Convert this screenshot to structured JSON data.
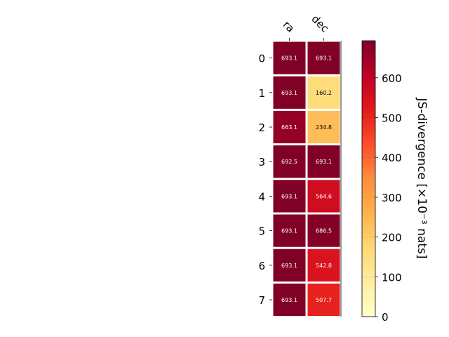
{
  "chart_data": {
    "type": "heatmap",
    "columns": [
      "ra",
      "dec"
    ],
    "rows": [
      "0",
      "1",
      "2",
      "3",
      "4",
      "5",
      "6",
      "7"
    ],
    "values": [
      [
        693.1,
        693.1
      ],
      [
        693.1,
        160.2
      ],
      [
        663.1,
        234.8
      ],
      [
        692.5,
        693.1
      ],
      [
        693.1,
        564.6
      ],
      [
        693.1,
        686.5
      ],
      [
        693.1,
        542.8
      ],
      [
        693.1,
        507.7
      ]
    ],
    "cell_labels": [
      [
        "693.1",
        "693.1"
      ],
      [
        "693.1",
        "160.2"
      ],
      [
        "663.1",
        "234.8"
      ],
      [
        "692.5",
        "693.1"
      ],
      [
        "693.1",
        "564.6"
      ],
      [
        "693.1",
        "686.5"
      ],
      [
        "693.1",
        "542.8"
      ],
      [
        "693.1",
        "507.7"
      ]
    ],
    "colorbar": {
      "label": "JS-divergence [×10⁻³ nats]",
      "range": [
        0,
        693.1
      ],
      "ticks": [
        0,
        100,
        200,
        300,
        400,
        500,
        600
      ],
      "tick_labels": [
        "0",
        "100",
        "200",
        "300",
        "400",
        "500",
        "600"
      ],
      "colormap": "YlOrRd"
    }
  }
}
